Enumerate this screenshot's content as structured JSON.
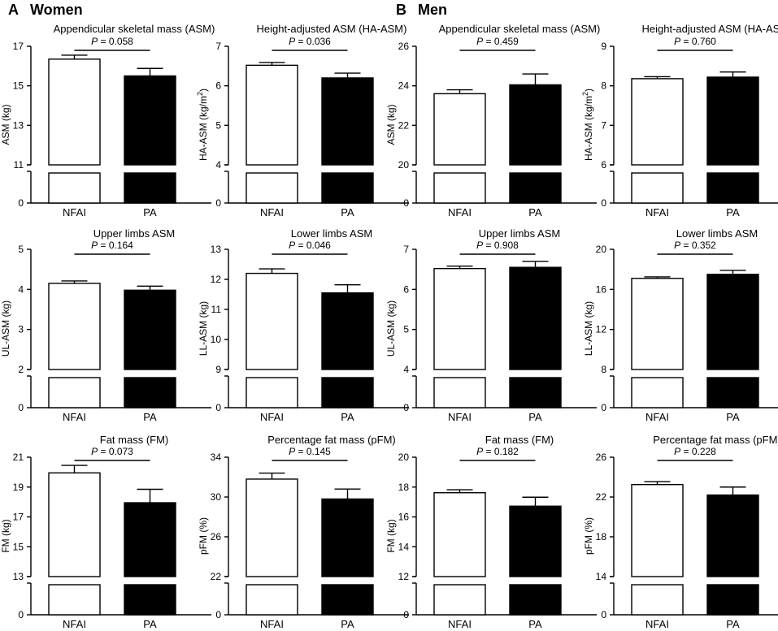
{
  "sections": [
    {
      "letter": "A",
      "title": "Women"
    },
    {
      "letter": "B",
      "title": "Men"
    }
  ],
  "chart_data": [
    {
      "type": "bar",
      "group": "Women",
      "title": "Appendicular skeletal mass (ASM)",
      "ylabel": "ASM (kg)",
      "unit_sup": "",
      "categories": [
        "NFAI",
        "PA"
      ],
      "values": [
        16.35,
        15.5
      ],
      "errors": [
        0.2,
        0.38
      ],
      "ylim": [
        11,
        17
      ],
      "yticks": [
        "17",
        "15",
        "13",
        "11"
      ],
      "ytick_values": [
        17,
        15,
        13,
        11
      ],
      "zero_label": "0",
      "p_value": "= 0.058",
      "p_label": "P"
    },
    {
      "type": "bar",
      "group": "Women",
      "title": "Height-adjusted ASM (HA-ASM)",
      "ylabel": "HA-ASM (kg/m",
      "unit_sup": "2",
      "ylabel_end": ")",
      "categories": [
        "NFAI",
        "PA"
      ],
      "values": [
        6.52,
        6.2
      ],
      "errors": [
        0.07,
        0.12
      ],
      "ylim": [
        4,
        7
      ],
      "yticks": [
        "7",
        "6",
        "5",
        "4"
      ],
      "ytick_values": [
        7,
        6,
        5,
        4
      ],
      "zero_label": "0",
      "p_value": "= 0.036",
      "p_label": "P"
    },
    {
      "type": "bar",
      "group": "Men",
      "title": "Appendicular skeletal mass (ASM)",
      "ylabel": "ASM (kg)",
      "unit_sup": "",
      "categories": [
        "NFAI",
        "PA"
      ],
      "values": [
        23.6,
        24.05
      ],
      "errors": [
        0.2,
        0.55
      ],
      "ylim": [
        20,
        26
      ],
      "yticks": [
        "26",
        "24",
        "22",
        "20"
      ],
      "ytick_values": [
        26,
        24,
        22,
        20
      ],
      "zero_label": "0",
      "p_value": "= 0.459",
      "p_label": "P"
    },
    {
      "type": "bar",
      "group": "Men",
      "title": "Height-adjusted ASM (HA-ASM)",
      "ylabel": "HA-ASM (kg/m",
      "unit_sup": "2",
      "ylabel_end": ")",
      "categories": [
        "NFAI",
        "PA"
      ],
      "values": [
        8.18,
        8.22
      ],
      "errors": [
        0.05,
        0.13
      ],
      "ylim": [
        6,
        9
      ],
      "yticks": [
        "9",
        "8",
        "7",
        "6"
      ],
      "ytick_values": [
        9,
        8,
        7,
        6
      ],
      "zero_label": "0",
      "p_value": "= 0.760",
      "p_label": "P"
    },
    {
      "type": "bar",
      "group": "Women",
      "title": "Upper limbs ASM",
      "ylabel": "UL-ASM (kg)",
      "unit_sup": "",
      "categories": [
        "NFAI",
        "PA"
      ],
      "values": [
        4.15,
        3.98
      ],
      "errors": [
        0.06,
        0.1
      ],
      "ylim": [
        2,
        5
      ],
      "yticks": [
        "5",
        "4",
        "3",
        "2"
      ],
      "ytick_values": [
        5,
        4,
        3,
        2
      ],
      "zero_label": "0",
      "p_value": "= 0.164",
      "p_label": "P"
    },
    {
      "type": "bar",
      "group": "Women",
      "title": "Lower limbs ASM",
      "ylabel": "LL-ASM (kg)",
      "unit_sup": "",
      "categories": [
        "NFAI",
        "PA"
      ],
      "values": [
        12.2,
        11.55
      ],
      "errors": [
        0.15,
        0.27
      ],
      "ylim": [
        9,
        13
      ],
      "yticks": [
        "13",
        "12",
        "11",
        "10",
        "9"
      ],
      "ytick_values": [
        13,
        12,
        11,
        10,
        9
      ],
      "zero_label": "0",
      "p_value": "= 0.046",
      "p_label": "P"
    },
    {
      "type": "bar",
      "group": "Men",
      "title": "Upper limbs ASM",
      "ylabel": "UL-ASM (kg)",
      "unit_sup": "",
      "categories": [
        "NFAI",
        "PA"
      ],
      "values": [
        6.52,
        6.55
      ],
      "errors": [
        0.06,
        0.15
      ],
      "ylim": [
        4,
        7
      ],
      "yticks": [
        "7",
        "6",
        "5",
        "4"
      ],
      "ytick_values": [
        7,
        6,
        5,
        4
      ],
      "zero_label": "0",
      "p_value": "= 0.908",
      "p_label": "P"
    },
    {
      "type": "bar",
      "group": "Men",
      "title": "Lower limbs ASM",
      "ylabel": "LL-ASM (kg)",
      "unit_sup": "",
      "categories": [
        "NFAI",
        "PA"
      ],
      "values": [
        17.1,
        17.5
      ],
      "errors": [
        0.15,
        0.4
      ],
      "ylim": [
        8,
        20
      ],
      "yticks": [
        "20",
        "16",
        "12",
        "8"
      ],
      "ytick_values": [
        20,
        16,
        12,
        8
      ],
      "zero_label": "0",
      "p_value": "= 0.352",
      "p_label": "P"
    },
    {
      "type": "bar",
      "group": "Women",
      "title": "Fat mass (FM)",
      "ylabel": "FM (kg)",
      "unit_sup": "",
      "categories": [
        "NFAI",
        "PA"
      ],
      "values": [
        19.95,
        17.95
      ],
      "errors": [
        0.5,
        0.9
      ],
      "ylim": [
        13,
        21
      ],
      "yticks": [
        "21",
        "19",
        "17",
        "15",
        "13"
      ],
      "ytick_values": [
        21,
        19,
        17,
        15,
        13
      ],
      "zero_label": "0",
      "p_value": "= 0.073",
      "p_label": "P"
    },
    {
      "type": "bar",
      "group": "Women",
      "title": "Percentage fat mass (pFM)",
      "ylabel": "pFM (%)",
      "unit_sup": "",
      "categories": [
        "NFAI",
        "PA"
      ],
      "values": [
        31.8,
        29.8
      ],
      "errors": [
        0.6,
        1.0
      ],
      "ylim": [
        22,
        34
      ],
      "yticks": [
        "34",
        "30",
        "26",
        "22"
      ],
      "ytick_values": [
        34,
        30,
        26,
        22
      ],
      "zero_label": "0",
      "p_value": "= 0.145",
      "p_label": "P"
    },
    {
      "type": "bar",
      "group": "Men",
      "title": "Fat mass (FM)",
      "ylabel": "FM (kg)",
      "unit_sup": "",
      "categories": [
        "NFAI",
        "PA"
      ],
      "values": [
        17.62,
        16.72
      ],
      "errors": [
        0.2,
        0.6
      ],
      "ylim": [
        12,
        20
      ],
      "yticks": [
        "20",
        "18",
        "16",
        "14",
        "12"
      ],
      "ytick_values": [
        20,
        18,
        16,
        14,
        12
      ],
      "zero_label": "0",
      "p_value": "= 0.182",
      "p_label": "P"
    },
    {
      "type": "bar",
      "group": "Men",
      "title": "Percentage fat mass (pFM)",
      "ylabel": "pFM (%)",
      "unit_sup": "",
      "categories": [
        "NFAI",
        "PA"
      ],
      "values": [
        23.25,
        22.2
      ],
      "errors": [
        0.3,
        0.8
      ],
      "ylim": [
        14,
        26
      ],
      "yticks": [
        "26",
        "22",
        "18",
        "14"
      ],
      "ytick_values": [
        26,
        22,
        18,
        14
      ],
      "zero_label": "0",
      "p_value": "= 0.228",
      "p_label": "P"
    }
  ]
}
